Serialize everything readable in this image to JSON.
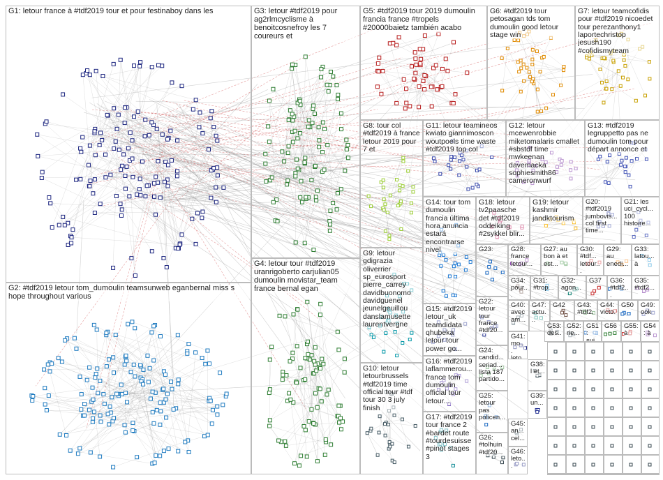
{
  "groups": [
    "G1: letour france à #tdf2019 tour et pour festinaboy dans les",
    "G2: #tdf2019 letour tom_dumoulin teamsunweb eganbernal miss s hope throughout various",
    "G3: letour #tdf2019 pour ag2rlmcyclisme à benoitcosnefroy les 7 coureurs et",
    "G4: letour tour #tdf2019 uranrigoberto carjulian05 dumoulin movistar_team france bernal egan",
    "G5: #tdf2019 tour 2019 dumoulin francia france #tropels #20000baietz también acabo",
    "G6: #tdf2019 tour petosagan tds tom dumoulin good letour stage win",
    "G7: letour teamcofidis pour #tdf2019 nicoedet tour perezanthony1 laportechristop jesush190 #cofidismyteam",
    "G8: tour col #tdf2019 à france letour 2019 pour 7 et",
    "G11: letour teamineos kwiato giannimoscon woutpoels time waste #tdf2019 top col",
    "G12: letour mcewenrobbie miketomalaris cmallet #sbstdf time mwkeenan davemacka sophiesmith86 cameronwurf",
    "G13: #tdf2019 legruppetto pas ne dumoulin tom pour départ annonce et",
    "G14: tour tom dumoulin francia última hora anuncia estará encontrarse nivel",
    "G18: letour tv2paasche det #tdf2019 oddeiking #2sykkel blir...",
    "G19: letour kashmir jandktourism",
    "G20: #tdf2019 jumbovis... col first time...",
    "G21: les uci_cycl... 100 histoire...",
    "G9: letour gdigrazia oliverrier sp_eurosport pierre_carrey davidbuonomo davidguenel jeunelgeuillou danslamusette laurentvergne",
    "G10: letour letourbrussels #tdf2019 time official tour #tdf tour 30 3 july finish",
    "G15: #tdf2019 letour_uk teamdidata qhubeka letour tour power go...",
    "G16: #tdf2019 laflammerou... france tom dumoulin official tour letour...",
    "G17: #tdf2019 tour france 2 #bardet route #tourdesuisse #pinot stages 3",
    "G23:",
    "G28: france letour...",
    "G27: au bon à et est...",
    "G30: #tdf... letour...",
    "G29: au enedi...",
    "G33: latou... à",
    "G34: pour...",
    "G31: #trop...",
    "G32: agon...",
    "G37",
    "G36: #tdf2...",
    "G35: #tdf2...",
    "G22: letour tour france #tdf20...",
    "G24: candid... seriad... lista 187 partido...",
    "G25: letour pas policen...",
    "G26: #tolhuin #tdf20...",
    "G40: avec am...",
    "G47: actu...",
    "G42",
    "G43: #tdf2...",
    "G44: victo...",
    "G50",
    "G49: ook",
    "G41: mo... leto...",
    "G53: des...",
    "G52: rie...",
    "G51: sui...",
    "G56",
    "G55: à",
    "G54: à",
    "G38: l et...",
    "G39: un...",
    "G45: an... cel...",
    "G46: leto..."
  ]
}
